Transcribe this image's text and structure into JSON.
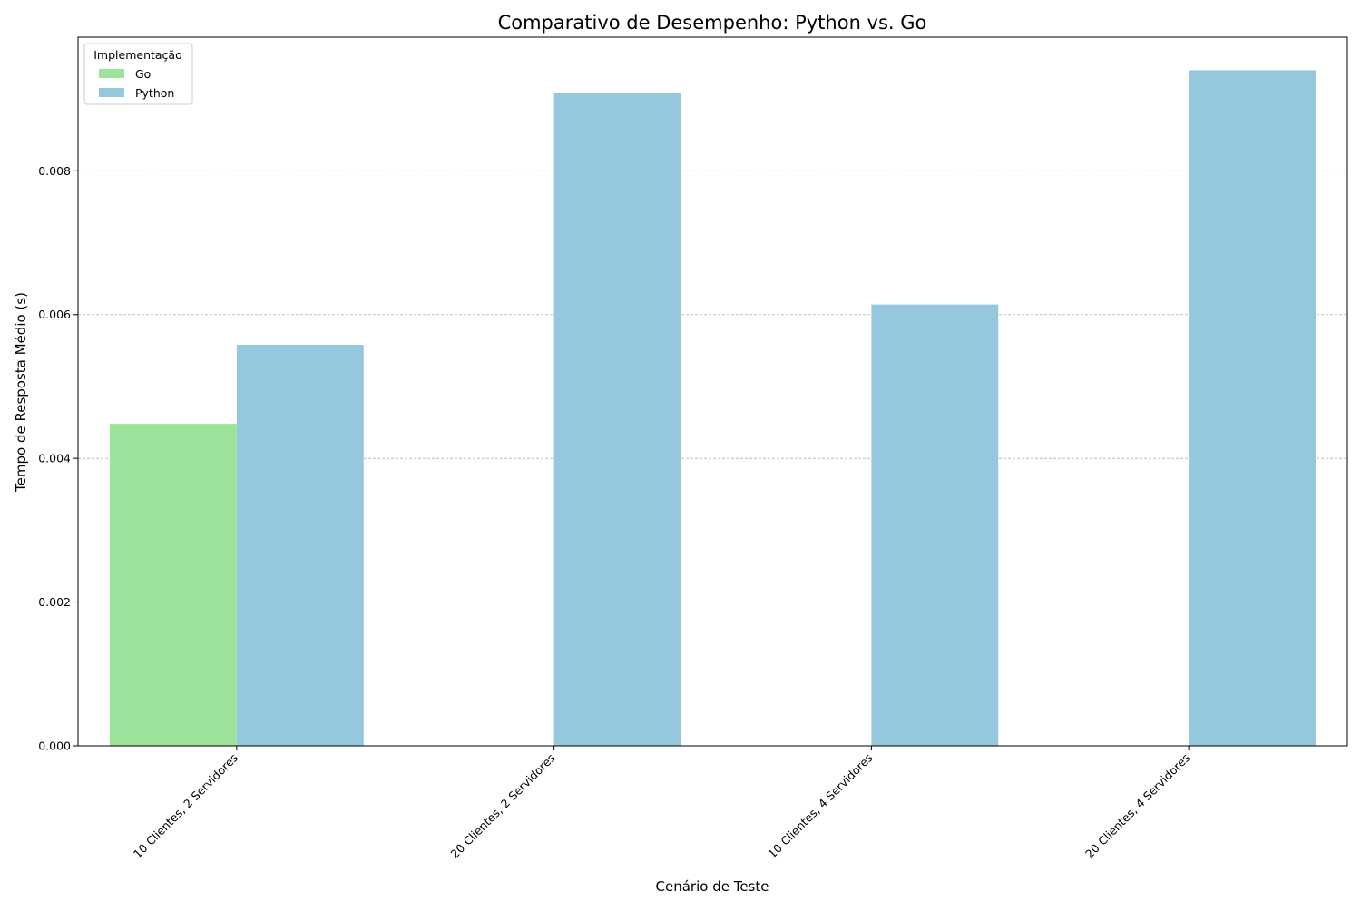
{
  "chart_data": {
    "type": "bar",
    "title": "Comparativo de Desempenho: Python vs. Go",
    "xlabel": "Cenário de Teste",
    "ylabel": "Tempo de Resposta Médio (s)",
    "categories": [
      "10 Clientes, 2 Servidores",
      "20 Clientes, 2 Servidores",
      "10 Clientes, 4 Servidores",
      "20 Clientes, 4 Servidores"
    ],
    "series": [
      {
        "name": "Go",
        "color": "#9de29a",
        "values": [
          0.00448,
          null,
          null,
          null
        ]
      },
      {
        "name": "Python",
        "color": "#96c8dd",
        "values": [
          0.00558,
          0.00908,
          0.00614,
          0.0094
        ]
      }
    ],
    "ylim": [
      0,
      0.00986
    ],
    "yticks": [
      "0.000",
      "0.002",
      "0.004",
      "0.006",
      "0.008"
    ],
    "ytick_values": [
      0,
      0.002,
      0.004,
      0.006,
      0.008
    ],
    "grid": "y-dashed",
    "legend": {
      "title": "Implementação",
      "placement": "top-left",
      "entries": [
        "Go",
        "Python"
      ]
    }
  }
}
